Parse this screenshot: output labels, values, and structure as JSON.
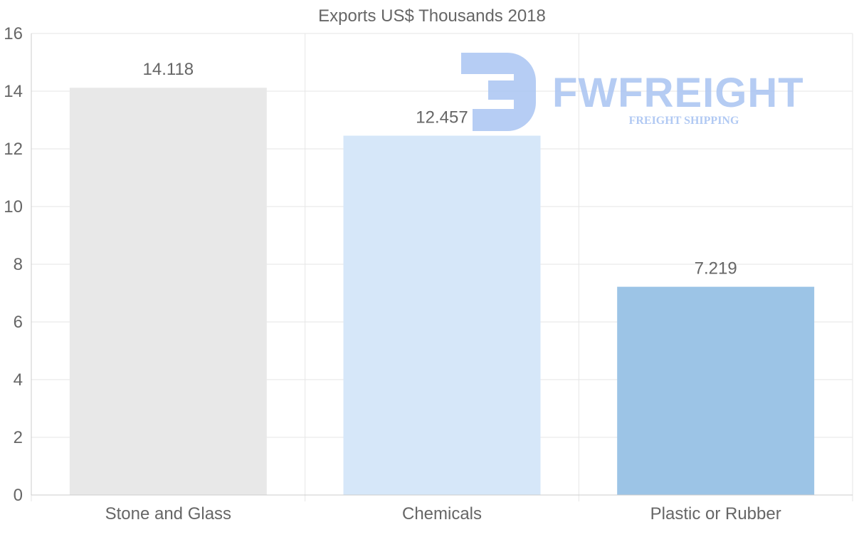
{
  "chart_data": {
    "type": "bar",
    "title": "Exports US$ Thousands 2018",
    "categories": [
      "Stone and Glass",
      "Chemicals",
      "Plastic or Rubber"
    ],
    "values": [
      14.118,
      12.457,
      7.219
    ],
    "value_labels": [
      "14.118",
      "12.457",
      "7.219"
    ],
    "bar_colors": [
      "#e8e8e8",
      "#d6e7f9",
      "#9cc4e6"
    ],
    "xlabel": "",
    "ylabel": "",
    "ylim": [
      0,
      16
    ],
    "yticks": [
      0,
      2,
      4,
      6,
      8,
      10,
      12,
      14,
      16
    ],
    "grid": true,
    "legend": "none"
  },
  "watermark": {
    "word": "FWFREIGHT",
    "subtitle": "FREIGHT SHIPPING",
    "color": "#a9c4f2"
  },
  "colors": {
    "grid": "#e6e6e6",
    "axis": "#cccccc",
    "text": "#666666"
  }
}
